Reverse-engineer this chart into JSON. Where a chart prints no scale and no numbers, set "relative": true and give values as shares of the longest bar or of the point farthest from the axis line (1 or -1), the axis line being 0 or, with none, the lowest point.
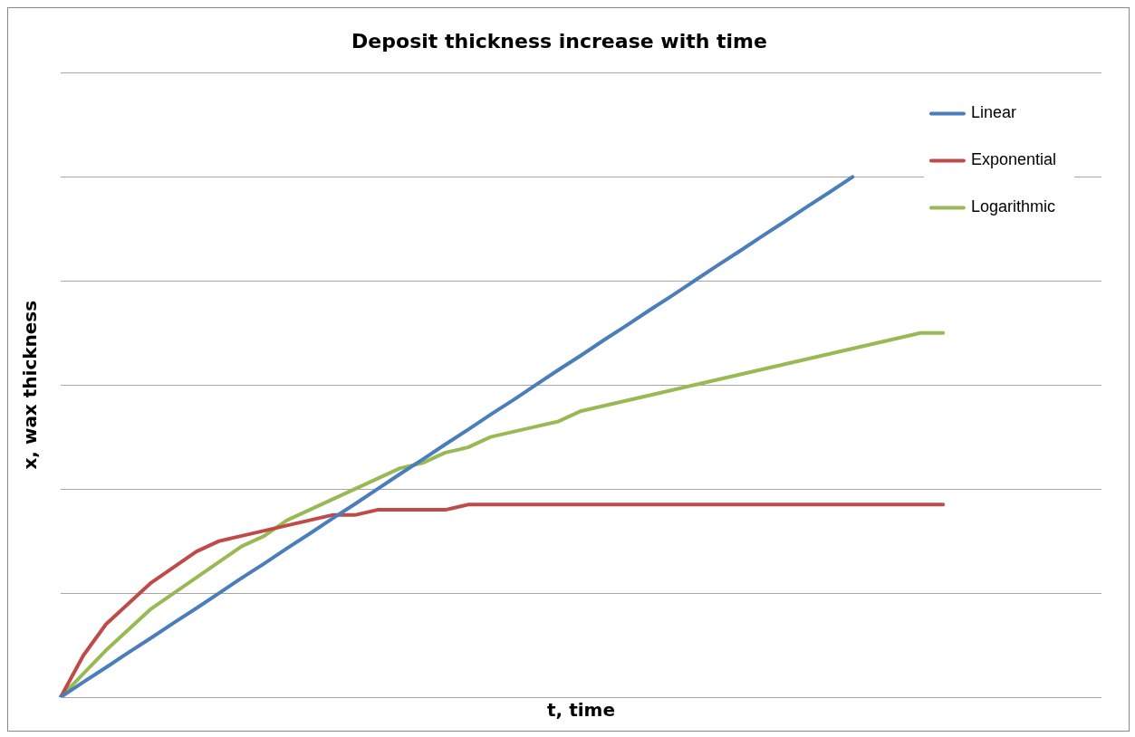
{
  "chart_data": {
    "type": "line",
    "title": "Deposit thickness increase with time",
    "xlabel": "t, time",
    "ylabel": "x, wax thickness",
    "relative": true,
    "grid": "y",
    "legend": "top right",
    "marker": "none",
    "line_style": "solid",
    "categories": [
      null,
      null,
      null,
      null,
      null,
      null,
      null,
      null,
      null,
      null,
      null,
      null,
      null,
      null,
      null,
      null,
      null,
      null,
      null,
      null,
      null,
      null,
      null,
      null,
      null,
      null,
      null,
      null,
      null,
      null,
      null,
      null,
      null,
      null,
      null,
      null,
      null,
      null,
      null,
      null,
      null,
      null,
      null,
      null,
      null,
      null,
      null
    ],
    "series": [
      {
        "name": "Linear",
        "color": "#4a7ebb",
        "values": [
          0,
          0.029,
          0.057,
          0.086,
          0.114,
          0.143,
          0.171,
          0.2,
          0.229,
          0.257,
          0.286,
          0.314,
          0.343,
          0.371,
          0.4,
          0.429,
          0.457,
          0.486,
          0.514,
          0.543,
          0.571,
          0.6,
          0.629,
          0.657,
          0.686,
          0.714,
          0.743,
          0.771,
          0.8,
          0.829,
          0.857,
          0.886,
          0.914,
          0.943,
          0.971,
          1,
          null,
          null,
          null,
          null,
          null,
          null,
          null,
          null,
          null,
          null,
          null
        ]
      },
      {
        "name": "Exponential",
        "color": "#be4b48",
        "values": [
          0,
          0.08,
          0.14,
          0.18,
          0.22,
          0.25,
          0.28,
          0.3,
          0.31,
          0.32,
          0.33,
          0.34,
          0.35,
          0.35,
          0.36,
          0.36,
          0.36,
          0.36,
          0.37,
          0.37,
          0.37,
          0.37,
          0.37,
          0.37,
          0.37,
          0.37,
          0.37,
          0.37,
          0.37,
          0.37,
          0.37,
          0.37,
          0.37,
          0.37,
          0.37,
          0.37,
          0.37,
          0.37,
          0.37,
          0.37,
          null,
          null,
          null,
          null,
          null,
          null,
          null
        ]
      },
      {
        "name": "Logarithmic",
        "color": "#98b954",
        "values": [
          0,
          0.045,
          0.09,
          0.13,
          0.17,
          0.2,
          0.23,
          0.26,
          0.29,
          0.31,
          0.34,
          0.36,
          0.38,
          0.4,
          0.42,
          0.44,
          0.45,
          0.47,
          0.48,
          0.5,
          0.51,
          0.52,
          0.53,
          0.55,
          0.56,
          0.57,
          0.58,
          0.59,
          0.6,
          0.61,
          0.62,
          0.63,
          0.64,
          0.65,
          0.66,
          0.67,
          0.68,
          0.69,
          0.7,
          0.7,
          null,
          null,
          null,
          null,
          null,
          null,
          null
        ]
      }
    ]
  }
}
